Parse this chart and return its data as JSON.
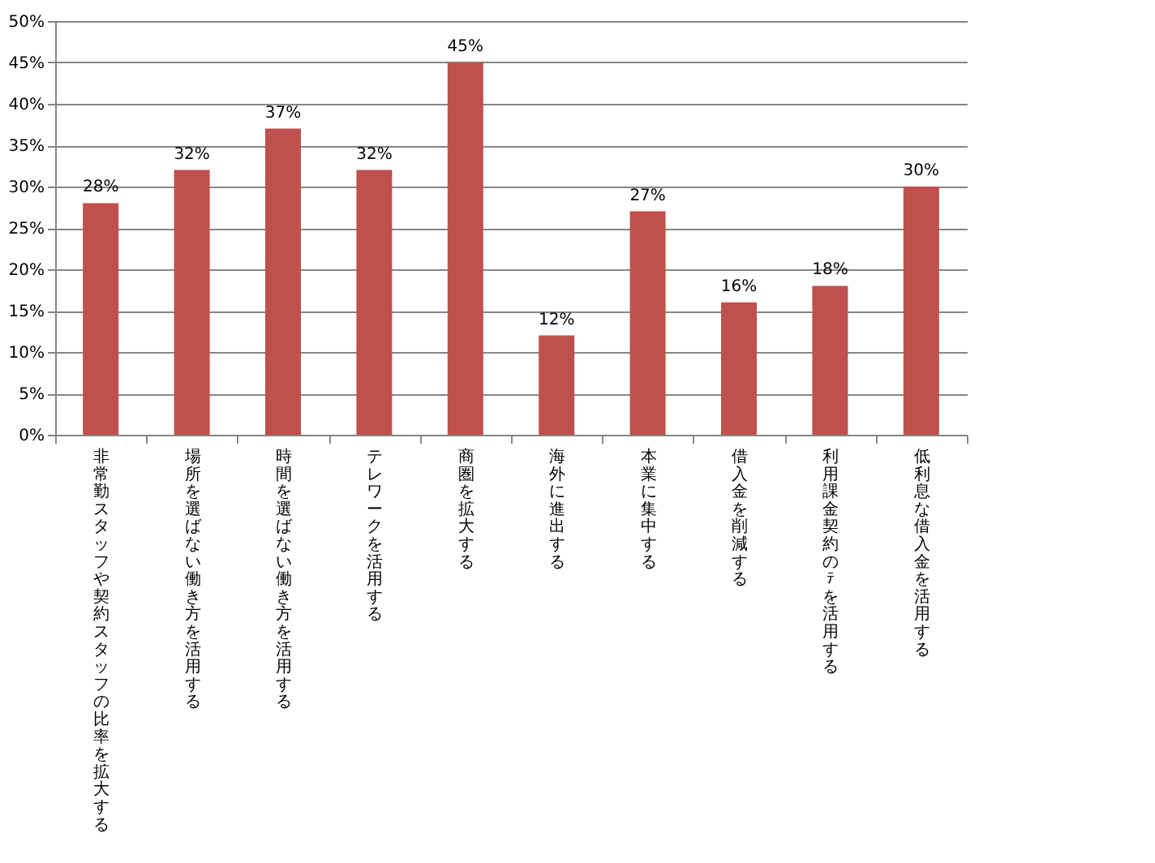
{
  "chart_data": {
    "type": "bar",
    "categories": [
      "非常勤スタッフや契約スタッフの比率を拡大する",
      "場所を選ばない働き方を活用する",
      "時間を選ばない働き方を活用する",
      "テレワークを活用する",
      "商圏を拡大する",
      "海外に進出する",
      "本業に集中する",
      "借入金を削減する",
      "利用課金契約のﾃを活用する",
      "低利息な借入金を活用する"
    ],
    "values": [
      28,
      32,
      37,
      32,
      45,
      12,
      27,
      16,
      18,
      30
    ],
    "value_labels": [
      "28%",
      "32%",
      "37%",
      "32%",
      "45%",
      "12%",
      "27%",
      "16%",
      "18%",
      "30%"
    ],
    "color": "#c0504d",
    "ylim": [
      0,
      50
    ],
    "yticks": [
      {
        "value": 0,
        "label": "0%"
      },
      {
        "value": 5,
        "label": "5%"
      },
      {
        "value": 10,
        "label": "10%"
      },
      {
        "value": 15,
        "label": "15%"
      },
      {
        "value": 20,
        "label": "20%"
      },
      {
        "value": 25,
        "label": "25%"
      },
      {
        "value": 30,
        "label": "30%"
      },
      {
        "value": 35,
        "label": "35%"
      },
      {
        "value": 40,
        "label": "40%"
      },
      {
        "value": 45,
        "label": "45%"
      },
      {
        "value": 50,
        "label": "50%"
      }
    ],
    "grid": "y"
  }
}
